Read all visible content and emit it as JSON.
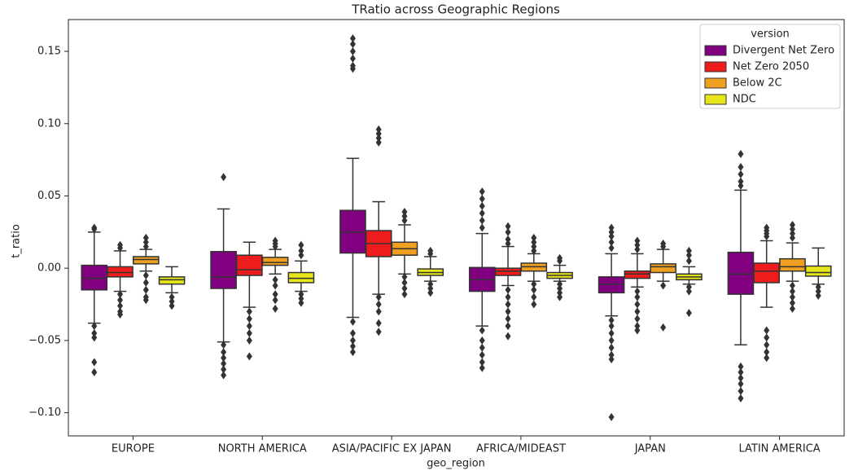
{
  "chart_data": {
    "type": "box",
    "title": "TRatio across Geographic Regions",
    "x_label": "geo_region",
    "y_label": "t_ratio",
    "categories": [
      "EUROPE",
      "NORTH AMERICA",
      "ASIA/PACIFIC EX JAPAN",
      "AFRICA/MIDEAST",
      "JAPAN",
      "LATIN AMERICA"
    ],
    "ylim": [
      -0.116,
      0.172
    ],
    "yticks": [
      0.15,
      {
        "value": 0.1,
        "label": "0.10"
      },
      0.05,
      {
        "value": 0,
        "label": "0.00"
      },
      {
        "value": -0.05,
        "label": "−0.05"
      },
      {
        "value": -0.1,
        "label": "−0.10"
      }
    ],
    "legend_title": "version",
    "legend_position": "upper right",
    "series": [
      {
        "name": "Divergent Net Zero",
        "color": "#800080",
        "boxes": [
          {
            "low": -0.038,
            "q1": -0.015,
            "median": -0.007,
            "q3": 0.002,
            "high": 0.025,
            "outliers": [
              0.028,
              0.027,
              -0.04,
              -0.045,
              -0.048,
              -0.065,
              -0.072
            ]
          },
          {
            "low": -0.051,
            "q1": -0.014,
            "median": -0.006,
            "q3": 0.0115,
            "high": 0.041,
            "outliers": [
              0.063,
              -0.053,
              -0.058,
              -0.062,
              -0.066,
              -0.07,
              -0.074
            ]
          },
          {
            "low": -0.034,
            "q1": 0.0105,
            "median": 0.025,
            "q3": 0.04,
            "high": 0.076,
            "outliers": [
              0.159,
              0.155,
              0.15,
              0.145,
              0.14,
              0.138,
              -0.037,
              -0.045,
              -0.05,
              -0.054,
              -0.058
            ]
          },
          {
            "low": -0.04,
            "q1": -0.016,
            "median": -0.008,
            "q3": 0.0005,
            "high": 0.024,
            "outliers": [
              0.053,
              0.048,
              0.043,
              0.038,
              0.033,
              0.028,
              -0.043,
              -0.05,
              -0.055,
              -0.06,
              -0.065,
              -0.069
            ]
          },
          {
            "low": -0.033,
            "q1": -0.017,
            "median": -0.011,
            "q3": -0.006,
            "high": 0.01,
            "outliers": [
              0.028,
              0.025,
              0.022,
              0.018,
              0.014,
              -0.036,
              -0.04,
              -0.045,
              -0.05,
              -0.055,
              -0.06,
              -0.063,
              -0.103
            ]
          },
          {
            "low": -0.053,
            "q1": -0.018,
            "median": -0.004,
            "q3": 0.011,
            "high": 0.054,
            "outliers": [
              0.079,
              0.07,
              0.065,
              0.06,
              0.057,
              -0.068,
              -0.072,
              -0.076,
              -0.08,
              -0.085,
              -0.09
            ]
          }
        ]
      },
      {
        "name": "Net Zero 2050",
        "color": "#ee1c1c",
        "boxes": [
          {
            "low": -0.016,
            "q1": -0.006,
            "median": -0.003,
            "q3": 0.001,
            "high": 0.012,
            "outliers": [
              0.016,
              0.014,
              -0.018,
              -0.022,
              -0.026,
              -0.03,
              -0.032
            ]
          },
          {
            "low": -0.027,
            "q1": -0.005,
            "median": -0.001,
            "q3": 0.009,
            "high": 0.018,
            "outliers": [
              -0.03,
              -0.035,
              -0.04,
              -0.045,
              -0.05,
              -0.061
            ]
          },
          {
            "low": -0.018,
            "q1": 0.008,
            "median": 0.017,
            "q3": 0.026,
            "high": 0.046,
            "outliers": [
              0.096,
              0.093,
              0.09,
              0.087,
              -0.02,
              -0.025,
              -0.03,
              -0.038,
              -0.044
            ]
          },
          {
            "low": -0.012,
            "q1": -0.005,
            "median": -0.002,
            "q3": 0,
            "high": 0.015,
            "outliers": [
              0.029,
              0.025,
              0.02,
              0.017,
              -0.015,
              -0.02,
              -0.025,
              -0.03,
              -0.035,
              -0.04,
              -0.047
            ]
          },
          {
            "low": -0.013,
            "q1": -0.007,
            "median": -0.004,
            "q3": -0.002,
            "high": 0.01,
            "outliers": [
              0.019,
              0.016,
              0.013,
              -0.016,
              -0.02,
              -0.025,
              -0.03,
              -0.035,
              -0.04,
              -0.043
            ]
          },
          {
            "low": -0.027,
            "q1": -0.01,
            "median": -0.002,
            "q3": 0.0035,
            "high": 0.019,
            "outliers": [
              0.028,
              0.026,
              0.024,
              0.022,
              -0.043,
              -0.048,
              -0.053,
              -0.058,
              -0.062
            ]
          }
        ]
      },
      {
        "name": "Below 2C",
        "color": "#f0a020",
        "boxes": [
          {
            "low": -0.002,
            "q1": 0.003,
            "median": 0.006,
            "q3": 0.008,
            "high": 0.013,
            "outliers": [
              0.021,
              0.018,
              0.015,
              -0.005,
              -0.01,
              -0.015,
              -0.02,
              -0.022
            ]
          },
          {
            "low": -0.004,
            "q1": 0.002,
            "median": 0.004,
            "q3": 0.0075,
            "high": 0.013,
            "outliers": [
              0.019,
              0.017,
              0.015,
              -0.008,
              -0.012,
              -0.018,
              -0.022,
              -0.028
            ]
          },
          {
            "low": -0.004,
            "q1": 0.009,
            "median": 0.0135,
            "q3": 0.018,
            "high": 0.03,
            "outliers": [
              0.039,
              0.036,
              0.033,
              -0.006,
              -0.01,
              -0.014,
              -0.018
            ]
          },
          {
            "low": -0.009,
            "q1": -0.002,
            "median": 0.001,
            "q3": 0.0035,
            "high": 0.01,
            "outliers": [
              0.021,
              0.018,
              0.015,
              0.012,
              -0.011,
              -0.015,
              -0.02,
              -0.025
            ]
          },
          {
            "low": -0.009,
            "q1": -0.003,
            "median": 0.001,
            "q3": 0.003,
            "high": 0.013,
            "outliers": [
              0.017,
              0.015,
              -0.012,
              -0.041
            ]
          },
          {
            "low": -0.009,
            "q1": -0.002,
            "median": 0.001,
            "q3": 0.0065,
            "high": 0.0175,
            "outliers": [
              0.03,
              0.027,
              0.024,
              0.021,
              -0.012,
              -0.016,
              -0.02,
              -0.024,
              -0.028
            ]
          }
        ]
      },
      {
        "name": "NDC",
        "color": "#e6e61a",
        "boxes": [
          {
            "low": -0.017,
            "q1": -0.011,
            "median": -0.008,
            "q3": -0.006,
            "high": 0.001,
            "outliers": [
              -0.02,
              -0.023,
              -0.026
            ]
          },
          {
            "low": -0.016,
            "q1": -0.01,
            "median": -0.007,
            "q3": -0.003,
            "high": 0.005,
            "outliers": [
              0.016,
              0.012,
              0.009,
              -0.018,
              -0.021,
              -0.024
            ]
          },
          {
            "low": -0.009,
            "q1": -0.005,
            "median": -0.003,
            "q3": -0.0005,
            "high": 0.008,
            "outliers": [
              0.012,
              0.01,
              -0.011,
              -0.014,
              -0.017
            ]
          },
          {
            "low": -0.009,
            "q1": -0.007,
            "median": -0.005,
            "q3": -0.003,
            "high": 0.002,
            "outliers": [
              0.007,
              0.005,
              -0.011,
              -0.014,
              -0.017,
              -0.02
            ]
          },
          {
            "low": -0.011,
            "q1": -0.008,
            "median": -0.006,
            "q3": -0.004,
            "high": 0.001,
            "outliers": [
              0.012,
              0.009,
              0.005,
              -0.013,
              -0.016,
              -0.031
            ]
          },
          {
            "low": -0.011,
            "q1": -0.0055,
            "median": -0.003,
            "q3": 0.0015,
            "high": 0.014,
            "outliers": [
              -0.013,
              -0.016,
              -0.019
            ]
          }
        ]
      }
    ]
  }
}
